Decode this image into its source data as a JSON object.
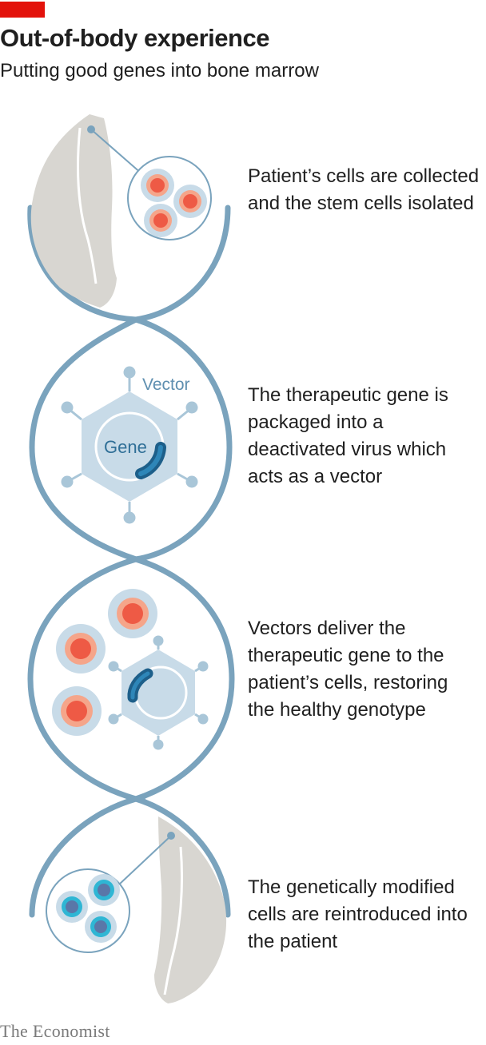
{
  "header": {
    "accent_color": "#e3120b",
    "title": "Out-of-body experience",
    "subtitle": "Putting good genes into bone marrow"
  },
  "diagram": {
    "helix_color": "#7aa3bd",
    "vector_label": "Vector",
    "gene_label": "Gene"
  },
  "steps": [
    {
      "text": "Patient’s cells are collected and the stem cells isolated"
    },
    {
      "text": "The therapeutic gene is packaged into a deactivated virus which acts as a vector"
    },
    {
      "text": "Vectors deliver the therapeutic gene to the patient’s cells, restoring the healthy genotype"
    },
    {
      "text": "The genetically modified cells are reintroduced into the patient"
    }
  ],
  "footer": {
    "logo": "The Economist"
  }
}
